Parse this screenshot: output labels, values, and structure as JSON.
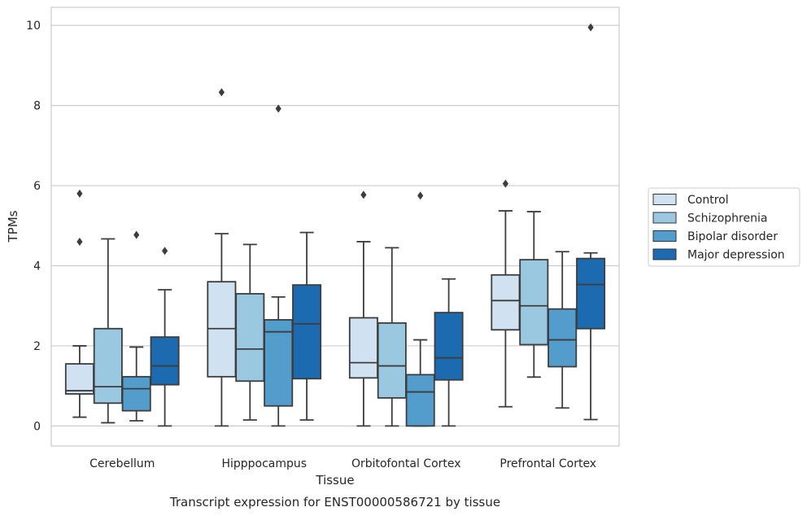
{
  "chart_data": {
    "type": "box",
    "xlabel": "Tissue",
    "ylabel": "TPMs",
    "caption": "Transcript expression for ENST00000586721 by tissue",
    "ylim": [
      -0.5,
      10.45
    ],
    "yticks": [
      0,
      2,
      4,
      6,
      8,
      10
    ],
    "grid": "horizontal",
    "legend_position": "right",
    "categories": [
      "Cerebellum",
      "Hipppocampus",
      "Orbitofontal Cortex",
      "Prefrontal Cortex"
    ],
    "series": [
      {
        "name": "Control",
        "color": "#d0e1f2",
        "boxes": [
          {
            "whislo": 0.22,
            "q1": 0.8,
            "median": 0.88,
            "q3": 1.55,
            "whishi": 2.0,
            "fliers": [
              4.6,
              5.8
            ]
          },
          {
            "whislo": 0.0,
            "q1": 1.23,
            "median": 2.43,
            "q3": 3.6,
            "whishi": 4.8,
            "fliers": [
              8.33
            ]
          },
          {
            "whislo": 0.0,
            "q1": 1.2,
            "median": 1.58,
            "q3": 2.7,
            "whishi": 4.6,
            "fliers": [
              5.77
            ]
          },
          {
            "whislo": 0.48,
            "q1": 2.4,
            "median": 3.13,
            "q3": 3.77,
            "whishi": 5.37,
            "fliers": [
              6.05
            ]
          }
        ]
      },
      {
        "name": "Schizophrenia",
        "color": "#9ac8e0",
        "boxes": [
          {
            "whislo": 0.08,
            "q1": 0.57,
            "median": 0.98,
            "q3": 2.43,
            "whishi": 4.67,
            "fliers": []
          },
          {
            "whislo": 0.15,
            "q1": 1.12,
            "median": 1.92,
            "q3": 3.3,
            "whishi": 4.53,
            "fliers": []
          },
          {
            "whislo": 0.0,
            "q1": 0.7,
            "median": 1.5,
            "q3": 2.57,
            "whishi": 4.45,
            "fliers": []
          },
          {
            "whislo": 1.22,
            "q1": 2.03,
            "median": 3.0,
            "q3": 4.15,
            "whishi": 5.35,
            "fliers": []
          }
        ]
      },
      {
        "name": "Bipolar disorder",
        "color": "#529dcc",
        "boxes": [
          {
            "whislo": 0.13,
            "q1": 0.38,
            "median": 0.93,
            "q3": 1.23,
            "whishi": 1.97,
            "fliers": [
              4.77
            ]
          },
          {
            "whislo": 0.0,
            "q1": 0.5,
            "median": 2.35,
            "q3": 2.65,
            "whishi": 3.22,
            "fliers": [
              7.92
            ]
          },
          {
            "whislo": 0.0,
            "q1": 0.0,
            "median": 0.85,
            "q3": 1.28,
            "whishi": 2.15,
            "fliers": [
              5.75
            ]
          },
          {
            "whislo": 0.45,
            "q1": 1.48,
            "median": 2.15,
            "q3": 2.92,
            "whishi": 4.35,
            "fliers": []
          }
        ]
      },
      {
        "name": "Major depression",
        "color": "#1c6aaf",
        "boxes": [
          {
            "whislo": 0.0,
            "q1": 1.03,
            "median": 1.5,
            "q3": 2.22,
            "whishi": 3.4,
            "fliers": [
              4.37
            ]
          },
          {
            "whislo": 0.15,
            "q1": 1.18,
            "median": 2.55,
            "q3": 3.52,
            "whishi": 4.83,
            "fliers": []
          },
          {
            "whislo": 0.0,
            "q1": 1.15,
            "median": 1.7,
            "q3": 2.83,
            "whishi": 3.67,
            "fliers": []
          },
          {
            "whislo": 0.16,
            "q1": 2.43,
            "median": 3.53,
            "q3": 4.18,
            "whishi": 4.32,
            "fliers": [
              9.95
            ]
          }
        ]
      }
    ]
  }
}
